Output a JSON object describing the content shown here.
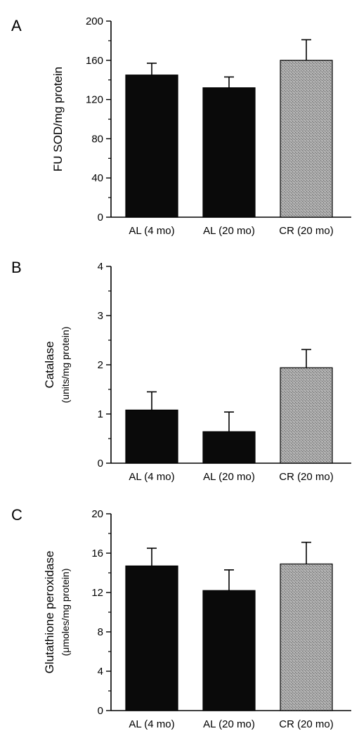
{
  "figure": {
    "colors": {
      "dark": "#0a0a0a",
      "stipple": "#9a9a9a",
      "axis": "#000000"
    }
  },
  "chart_data": [
    {
      "type": "bar",
      "panel": "A",
      "categories": [
        "AL (4 mo)",
        "AL (20 mo)",
        "CR (20 mo)"
      ],
      "values": [
        145,
        132,
        160
      ],
      "errors": [
        12,
        11,
        21
      ],
      "ylabel": "FU SOD/mg protein",
      "ylabel_sub": "",
      "ylim": [
        0,
        200
      ],
      "yticks": [
        0,
        40,
        80,
        120,
        160,
        200
      ],
      "ytick_labels": [
        "0",
        "40",
        "80",
        "120",
        "160",
        "200"
      ],
      "bar_styles": [
        "dark",
        "dark",
        "stipple"
      ]
    },
    {
      "type": "bar",
      "panel": "B",
      "categories": [
        "AL (4 mo)",
        "AL (20 mo)",
        "CR (20 mo)"
      ],
      "values": [
        1.08,
        0.64,
        1.94
      ],
      "errors": [
        0.37,
        0.4,
        0.37
      ],
      "ylabel": "Catalase",
      "ylabel_sub": "(units/mg protein)",
      "ylim": [
        0,
        4
      ],
      "yticks": [
        0,
        1,
        2,
        3,
        4
      ],
      "ytick_labels": [
        "0",
        "1",
        "2",
        "3",
        "4"
      ],
      "bar_styles": [
        "dark",
        "dark",
        "stipple"
      ]
    },
    {
      "type": "bar",
      "panel": "C",
      "categories": [
        "AL (4 mo)",
        "AL (20 mo)",
        "CR (20 mo)"
      ],
      "values": [
        14.7,
        12.2,
        14.9
      ],
      "errors": [
        1.8,
        2.1,
        2.2
      ],
      "ylabel": "Glutathione peroxidase",
      "ylabel_sub": "(μmoles/mg protein)",
      "ylim": [
        0,
        20
      ],
      "yticks": [
        0,
        4,
        8,
        12,
        16,
        20
      ],
      "ytick_labels": [
        "0",
        "4",
        "8",
        "12",
        "16",
        "20"
      ],
      "bar_styles": [
        "dark",
        "dark",
        "stipple"
      ]
    }
  ]
}
